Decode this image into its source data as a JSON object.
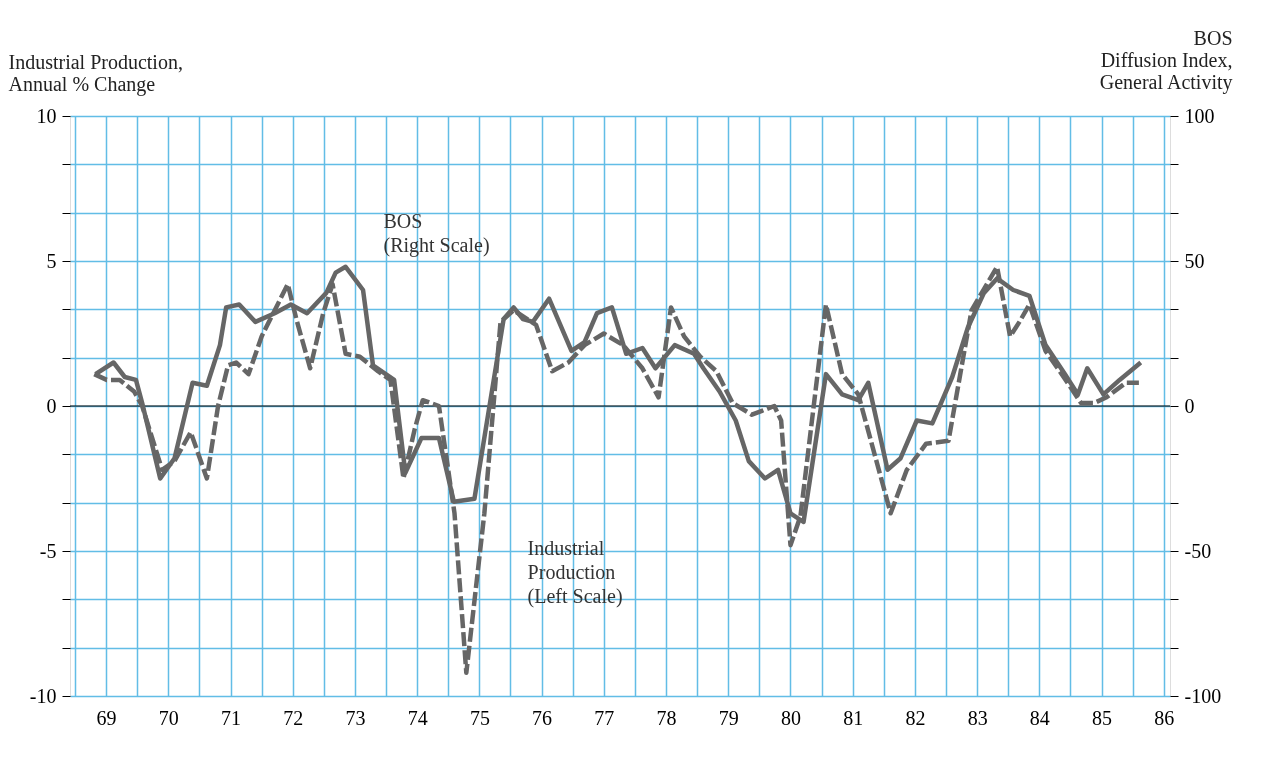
{
  "chart_data": {
    "type": "line",
    "ylabel": "Industrial Production,\nAnnual % Change",
    "y2label": "BOS\nDiffusion Index,\nGeneral Activity",
    "xlim": [
      68.42,
      86.1
    ],
    "xticks": [
      {
        "value": 68.5,
        "label": null
      },
      69,
      {
        "value": 69.5,
        "label": null
      },
      70,
      {
        "value": 70.5,
        "label": null
      },
      71,
      {
        "value": 71.5,
        "label": null
      },
      72,
      {
        "value": 72.5,
        "label": null
      },
      73,
      {
        "value": 73.5,
        "label": null
      },
      74,
      {
        "value": 74.5,
        "label": null
      },
      75,
      {
        "value": 75.5,
        "label": null
      },
      76,
      {
        "value": 76.5,
        "label": null
      },
      77,
      {
        "value": 77.5,
        "label": null
      },
      78,
      {
        "value": 78.5,
        "label": null
      },
      79,
      {
        "value": 79.5,
        "label": null
      },
      80,
      {
        "value": 80.5,
        "label": null
      },
      81,
      {
        "value": 81.5,
        "label": null
      },
      82,
      {
        "value": 82.5,
        "label": null
      },
      83,
      {
        "value": 83.5,
        "label": null
      },
      84,
      {
        "value": 84.5,
        "label": null
      },
      85,
      {
        "value": 85.5,
        "label": null
      },
      86
    ],
    "ylim": [
      -10,
      10
    ],
    "yticks": [
      -10,
      {
        "value": -8.333,
        "label": null
      },
      {
        "value": -6.667,
        "label": null
      },
      -5,
      {
        "value": -3.333,
        "label": null
      },
      {
        "value": -1.667,
        "label": null
      },
      0,
      {
        "value": 1.667,
        "label": null
      },
      {
        "value": 3.333,
        "label": null
      },
      5,
      {
        "value": 6.667,
        "label": null
      },
      {
        "value": 8.333,
        "label": null
      },
      10
    ],
    "y2lim": [
      -100,
      100
    ],
    "y2ticks": [
      -100,
      {
        "value": -83.33,
        "label": null
      },
      {
        "value": -66.67,
        "label": null
      },
      -50,
      {
        "value": -33.33,
        "label": null
      },
      {
        "value": -16.67,
        "label": null
      },
      0,
      {
        "value": 16.67,
        "label": null
      },
      {
        "value": 33.33,
        "label": null
      },
      50,
      {
        "value": 66.67,
        "label": null
      },
      {
        "value": 83.33,
        "label": null
      },
      100
    ],
    "grid": true,
    "ref_lines": [
      {
        "axis": "y",
        "value": 0,
        "color": "#000000"
      }
    ],
    "annotations": [
      "BOS\n(Right Scale)",
      "Industrial\nProduction\n(Left Scale)"
    ],
    "series": [
      {
        "color": "#666666",
        "line_style": "dashed",
        "axis": "y",
        "x": [
          68.81,
          69.01,
          69.22,
          69.45,
          69.58,
          69.9,
          70.1,
          70.36,
          70.62,
          70.8,
          70.96,
          71.09,
          71.29,
          71.5,
          71.92,
          72.07,
          72.28,
          72.49,
          72.64,
          72.85,
          73.08,
          73.37,
          73.57,
          73.78,
          73.96,
          74.09,
          74.35,
          74.6,
          74.79,
          75.08,
          75.34,
          75.55,
          75.91,
          76.17,
          76.43,
          76.69,
          77.0,
          77.31,
          77.62,
          77.88,
          78.08,
          78.29,
          78.55,
          78.81,
          79.07,
          79.38,
          79.74,
          79.85,
          80.0,
          80.16,
          80.57,
          80.83,
          81.09,
          81.61,
          81.87,
          82.18,
          82.54,
          82.91,
          83.32,
          83.53,
          83.68,
          83.84,
          84.1,
          84.36,
          84.67,
          84.88,
          85.08,
          85.39,
          85.6
        ],
        "values": [
          1.1,
          0.9,
          0.9,
          0.5,
          0,
          -2.2,
          -1.9,
          -0.9,
          -2.5,
          0,
          1.4,
          1.5,
          1.1,
          2.4,
          4.2,
          2.9,
          1.3,
          3.2,
          4.2,
          1.8,
          1.7,
          1.2,
          0.9,
          -2.5,
          -0.8,
          0.2,
          0,
          -3.7,
          -9.2,
          -3.7,
          2.9,
          3.3,
          2.8,
          1.2,
          1.5,
          2.1,
          2.5,
          2.1,
          1.3,
          0.3,
          3.4,
          2.4,
          1.7,
          1.2,
          0.1,
          -0.3,
          0,
          -0.5,
          -4.8,
          -3.8,
          3.5,
          1.1,
          0.4,
          -3.7,
          -2.2,
          -1.3,
          -1.2,
          3.3,
          4.8,
          2.4,
          2.9,
          3.5,
          1.9,
          1.1,
          0.1,
          0.1,
          0.3,
          0.8,
          0.8
        ]
      },
      {
        "color": "#666666",
        "line_style": "solid",
        "axis": "y2",
        "x": [
          68.83,
          69.12,
          69.3,
          69.48,
          69.58,
          69.87,
          70.1,
          70.39,
          70.62,
          70.83,
          70.93,
          71.14,
          71.4,
          71.71,
          71.97,
          72.23,
          72.54,
          72.69,
          72.85,
          73.13,
          73.29,
          73.63,
          73.81,
          74.07,
          74.35,
          74.59,
          74.92,
          75.39,
          75.55,
          75.7,
          75.86,
          76.12,
          76.48,
          76.69,
          76.89,
          77.13,
          77.36,
          77.62,
          77.83,
          78.14,
          78.45,
          78.6,
          78.86,
          79.12,
          79.33,
          79.59,
          79.8,
          80.0,
          80.21,
          80.57,
          80.83,
          81.09,
          81.25,
          81.56,
          81.77,
          82.03,
          82.28,
          82.6,
          82.85,
          83.11,
          83.32,
          83.58,
          83.84,
          84.1,
          84.41,
          84.62,
          84.77,
          85.03,
          85.29,
          85.63
        ],
        "values": [
          11,
          15,
          10,
          9,
          1,
          -25,
          -18,
          8,
          7,
          21,
          34,
          35,
          29,
          32,
          35,
          32,
          39,
          46,
          48,
          40,
          14,
          9,
          -23,
          -11,
          -11,
          -33,
          -32,
          30,
          34,
          30,
          29,
          37,
          19,
          22,
          32,
          34,
          18,
          20,
          13,
          21,
          18,
          13,
          5,
          -5,
          -19,
          -25,
          -22,
          -37,
          -40,
          11,
          4,
          2,
          8,
          -22,
          -18,
          -5,
          -6,
          10,
          27,
          39,
          44,
          40,
          38,
          21,
          11,
          4,
          13,
          4,
          9,
          15
        ]
      }
    ]
  }
}
